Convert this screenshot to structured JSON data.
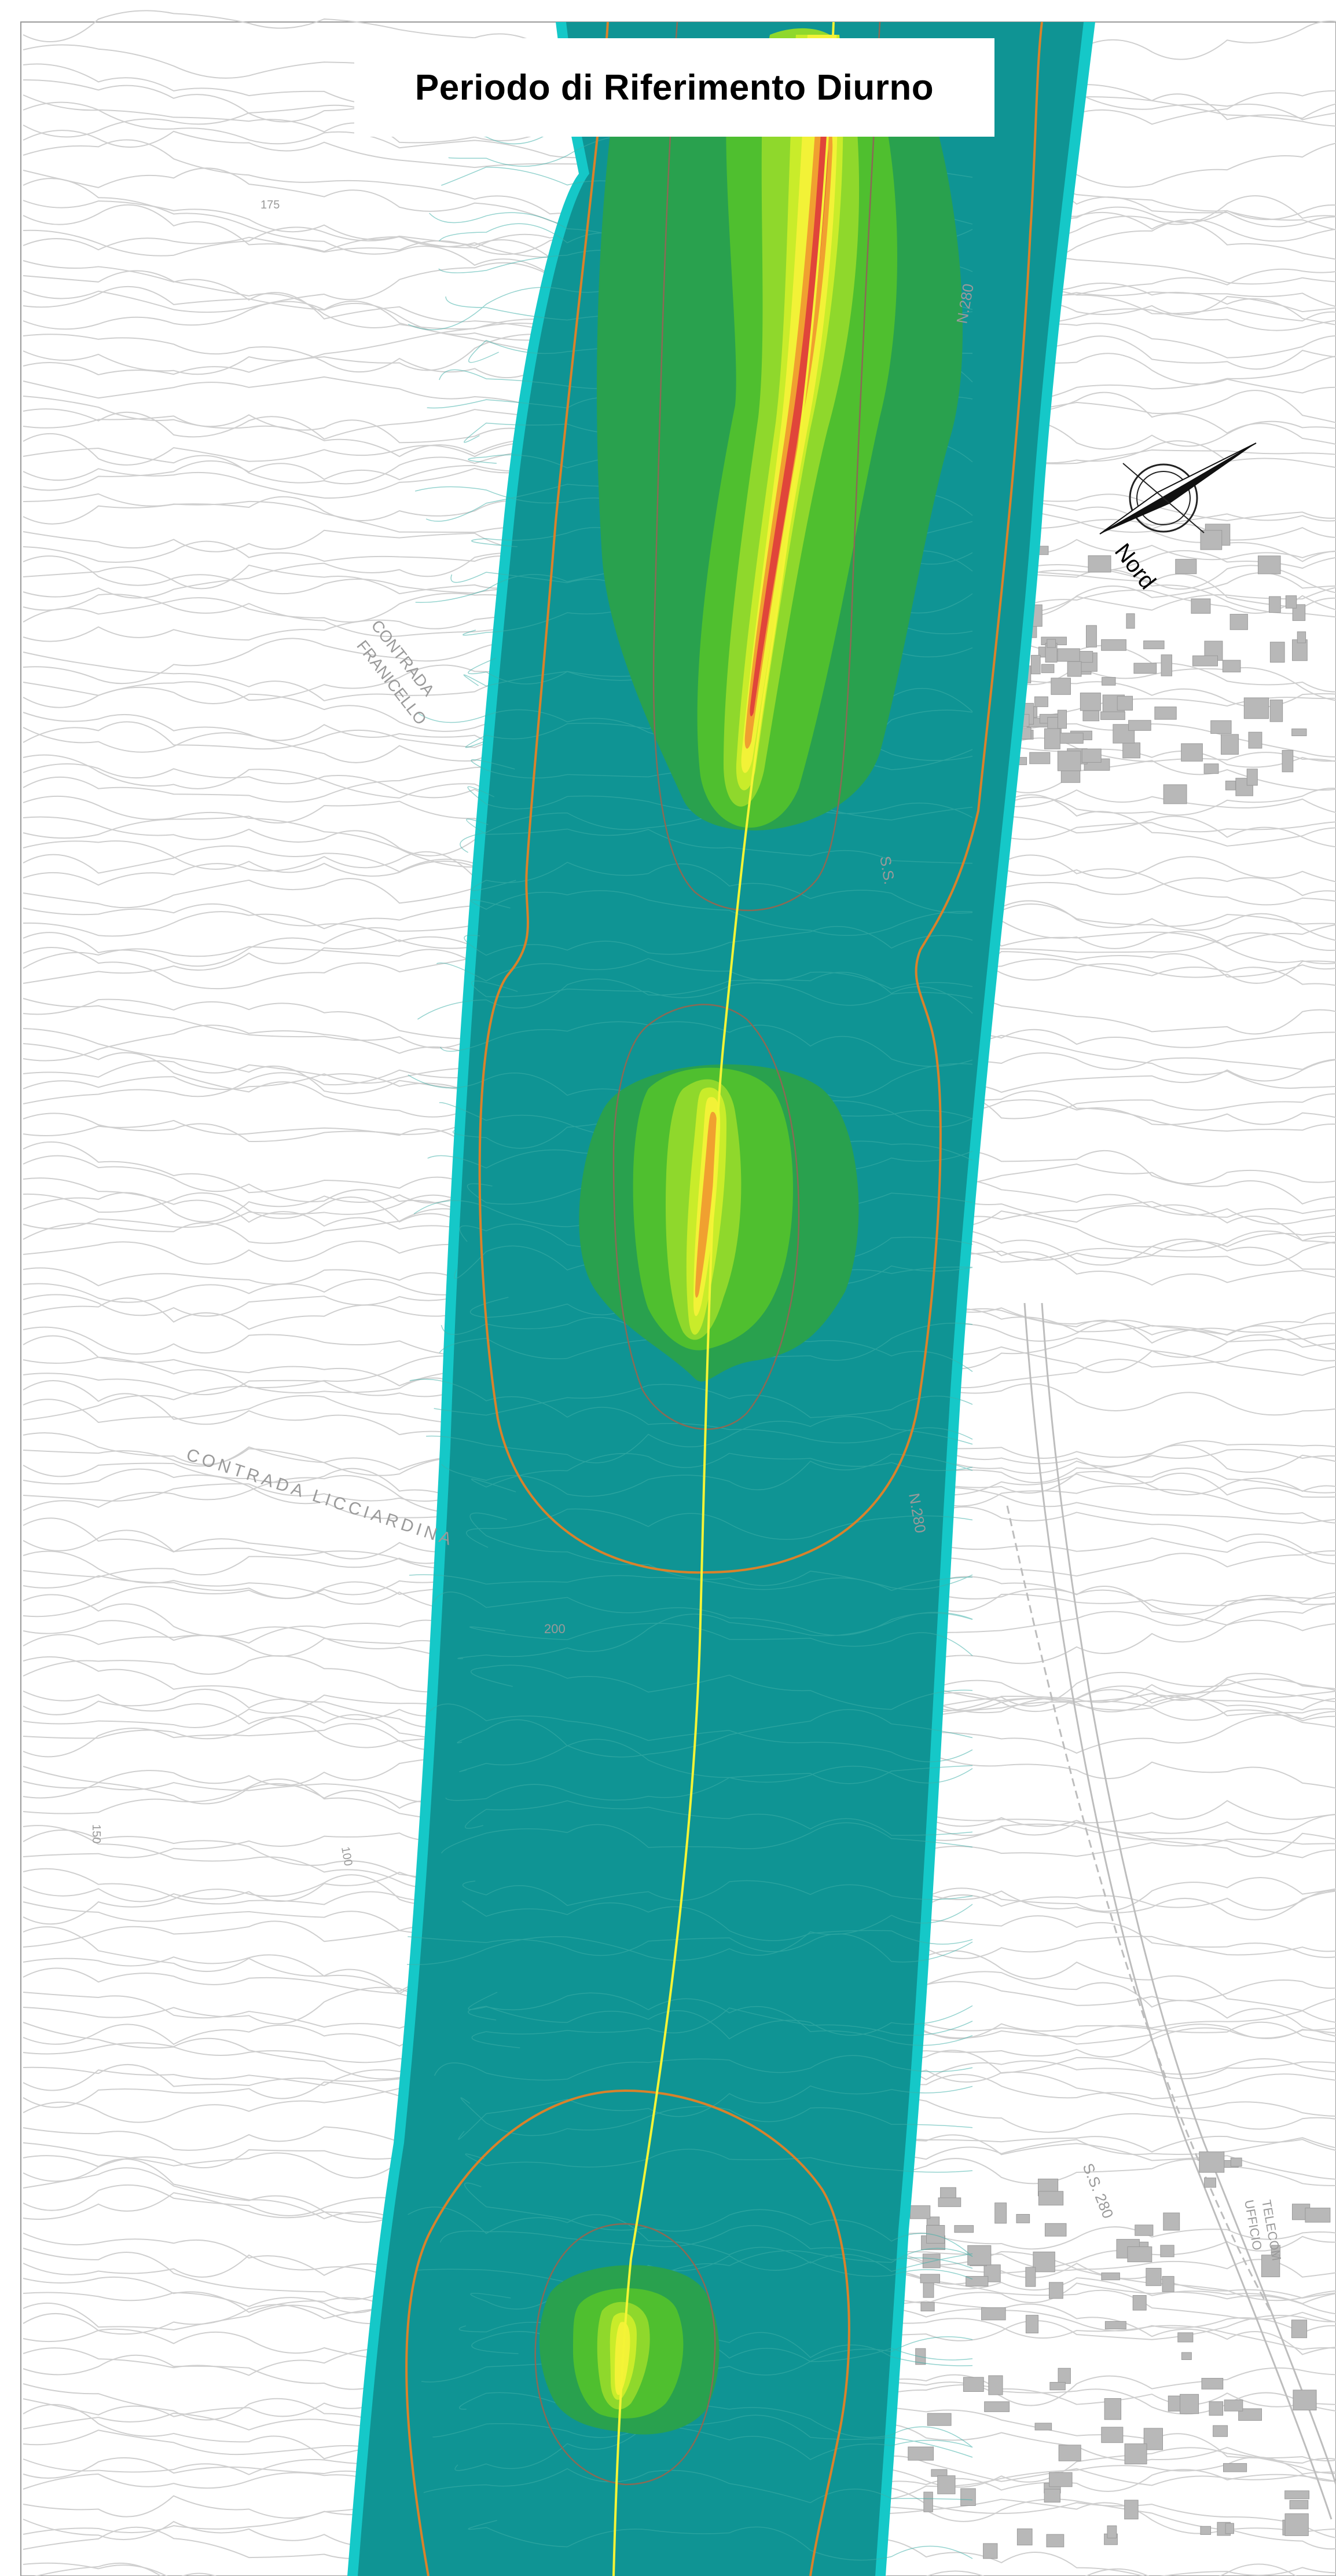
{
  "title": "Periodo di Riferimento Diurno",
  "north_arrow": {
    "label": "Nord"
  },
  "place_labels": {
    "contrada_line1": "CONTRADA",
    "contrada_line2": "FRANICELLO",
    "licciardina": "CONTRADA LICCIARDINA",
    "road_ss_a": "S.S.",
    "road_n280_a": "N.280",
    "road_n280_b": "N.280",
    "road_ss280": "S.S. 280",
    "ufficio": "UFFICIO",
    "telecom": "TELECOM",
    "contour_200": "200",
    "contour_175": "175",
    "contour_150": "150",
    "contour_100": "100"
  },
  "colors": {
    "band_edge": "#15c8c8",
    "band_fill": "#0f9494",
    "green_dark": "#29a14e",
    "green_mid": "#4fbf2f",
    "green_light": "#8fd82c",
    "yellow_green": "#c9ec2a",
    "yellow": "#f2f237",
    "orange": "#f0a030",
    "red": "#e0453a",
    "boundary": "#d9822b",
    "inner_boundary": "#8a6a55",
    "axis": "#f4f436",
    "topo": "#c8c8c8",
    "building": "#b4b4b4"
  }
}
